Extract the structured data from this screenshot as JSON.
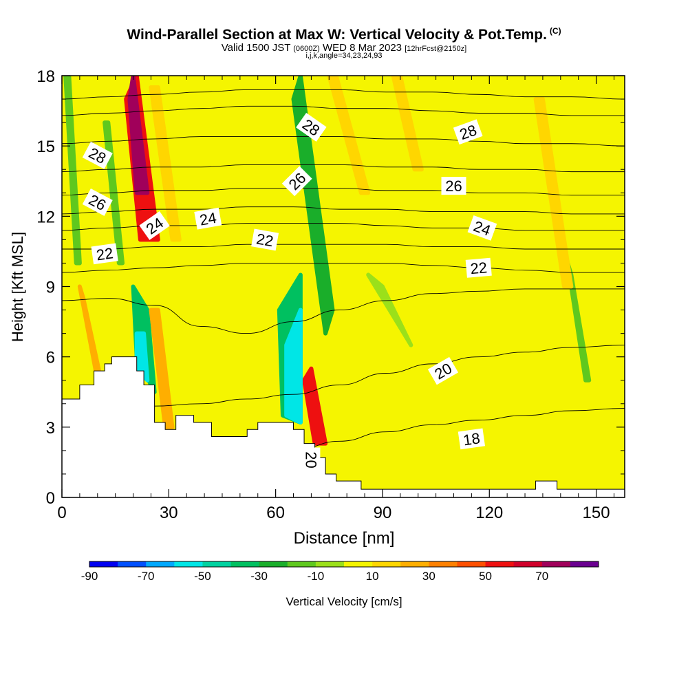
{
  "title": "Wind-Parallel Section at Max W: Vertical Velocity & Pot.Temp.",
  "title_mark": "(C)",
  "subtitle": {
    "valid": "Valid 1500 JST",
    "utc": "(0600Z)",
    "date": "WED 8 Mar 2023",
    "fcst": "[12hrFcst@2150z]"
  },
  "subinfo": "i,j,k,angle=34,23,24,93",
  "chart_data": {
    "type": "heatmap",
    "xlabel": "Distance [nm]",
    "ylabel": "Height [Kft MSL]",
    "xlim": [
      0,
      158
    ],
    "ylim": [
      0,
      18
    ],
    "x_ticks": [
      0,
      30,
      60,
      90,
      120,
      150
    ],
    "y_ticks": [
      0,
      3,
      6,
      9,
      12,
      15,
      18
    ],
    "colorbar": {
      "label": "Vertical Velocity [cm/s]",
      "bounds": [
        -90,
        -80,
        -70,
        -60,
        -50,
        -40,
        -30,
        -20,
        -10,
        0,
        10,
        20,
        30,
        40,
        50,
        60,
        70,
        80
      ],
      "tick_labels": [
        "-90",
        "-70",
        "-50",
        "-30",
        "-10",
        "10",
        "30",
        "50",
        "70"
      ],
      "colors": [
        "#0000f0",
        "#0050ff",
        "#00a8ff",
        "#00e6e6",
        "#00d2a0",
        "#00c060",
        "#1aae2a",
        "#5fc81e",
        "#9be01a",
        "#f5f500",
        "#ffd600",
        "#ffae00",
        "#ff8000",
        "#ff4f00",
        "#ee1010",
        "#d0002a",
        "#a0005a",
        "#6a0090"
      ]
    },
    "terrain": [
      [
        0,
        4.2
      ],
      [
        5,
        4.2
      ],
      [
        5,
        4.8
      ],
      [
        9,
        4.8
      ],
      [
        9,
        5.4
      ],
      [
        12,
        5.4
      ],
      [
        12,
        5.7
      ],
      [
        14,
        5.7
      ],
      [
        14,
        6.0
      ],
      [
        16,
        6.0
      ],
      [
        19,
        6.0
      ],
      [
        19,
        6.0
      ],
      [
        21,
        6.0
      ],
      [
        21,
        5.4
      ],
      [
        23,
        5.4
      ],
      [
        23,
        4.8
      ],
      [
        26,
        4.8
      ],
      [
        26,
        3.2
      ],
      [
        29,
        3.2
      ],
      [
        29,
        2.9
      ],
      [
        32,
        2.9
      ],
      [
        32,
        3.5
      ],
      [
        37,
        3.5
      ],
      [
        37,
        3.2
      ],
      [
        42,
        3.2
      ],
      [
        42,
        2.6
      ],
      [
        52,
        2.6
      ],
      [
        52,
        2.9
      ],
      [
        55,
        2.9
      ],
      [
        55,
        3.2
      ],
      [
        65,
        3.2
      ],
      [
        65,
        2.9
      ],
      [
        68,
        2.9
      ],
      [
        68,
        2.3
      ],
      [
        71,
        2.3
      ],
      [
        71,
        1.7
      ],
      [
        74,
        1.7
      ],
      [
        74,
        1.0
      ],
      [
        77,
        1.0
      ],
      [
        77,
        0.7
      ],
      [
        80,
        0.7
      ],
      [
        80,
        0.7
      ],
      [
        84,
        0.7
      ],
      [
        84,
        0.35
      ],
      [
        133,
        0.35
      ],
      [
        133,
        0.7
      ],
      [
        139,
        0.7
      ],
      [
        139,
        0.35
      ],
      [
        158,
        0.35
      ]
    ],
    "pot_temp_contours": [
      {
        "value": 18,
        "y": [
          1.5,
          1.5,
          1.6,
          1.7,
          1.8,
          2.0,
          2.4,
          2.8,
          3.1,
          3.3,
          3.5,
          3.7,
          3.8
        ]
      },
      {
        "value": 20,
        "y": [
          3.6,
          3.7,
          3.9,
          4.0,
          4.2,
          4.4,
          4.8,
          5.3,
          5.7,
          6.0,
          6.2,
          6.4,
          6.5
        ]
      },
      {
        "value": 21,
        "y": [
          8.4,
          8.5,
          8.2,
          7.3,
          7.0,
          7.5,
          8.0,
          8.4,
          8.7,
          8.8,
          8.9,
          8.9,
          8.9
        ]
      },
      {
        "value": 22,
        "y": [
          9.6,
          9.7,
          9.8,
          9.9,
          10.0,
          10.0,
          10.0,
          10.0,
          9.9,
          9.8,
          9.7,
          9.6,
          9.6
        ]
      },
      {
        "value": 23,
        "y": [
          10.6,
          10.6,
          10.7,
          10.7,
          10.8,
          10.8,
          10.8,
          10.8,
          10.7,
          10.7,
          10.6,
          10.6,
          10.6
        ]
      },
      {
        "value": 24,
        "y": [
          11.4,
          11.5,
          11.6,
          11.6,
          11.7,
          11.7,
          11.7,
          11.6,
          11.5,
          11.5,
          11.4,
          11.4,
          11.4
        ]
      },
      {
        "value": 25,
        "y": [
          12.1,
          12.2,
          12.3,
          12.3,
          12.4,
          12.4,
          12.3,
          12.3,
          12.2,
          12.2,
          12.2,
          12.1,
          12.1
        ]
      },
      {
        "value": 26,
        "y": [
          12.9,
          13.0,
          13.1,
          13.1,
          13.2,
          13.2,
          13.2,
          13.1,
          13.1,
          13.0,
          13.0,
          12.9,
          12.9
        ]
      },
      {
        "value": 27,
        "y": [
          13.9,
          14.0,
          14.1,
          14.1,
          14.2,
          14.2,
          14.2,
          14.1,
          14.1,
          14.0,
          14.0,
          13.9,
          13.9
        ]
      },
      {
        "value": 28,
        "y": [
          15.1,
          15.2,
          15.3,
          15.4,
          15.4,
          15.4,
          15.4,
          15.3,
          15.3,
          15.2,
          15.1,
          15.1,
          15.0
        ]
      },
      {
        "value": 29,
        "y": [
          16.3,
          16.4,
          16.5,
          16.6,
          16.7,
          16.7,
          16.6,
          16.6,
          16.5,
          16.4,
          16.4,
          16.3,
          16.3
        ]
      },
      {
        "value": 30,
        "y": [
          17.0,
          17.1,
          17.2,
          17.3,
          17.4,
          17.4,
          17.4,
          17.3,
          17.3,
          17.2,
          17.1,
          17.1,
          17.0
        ]
      }
    ],
    "contour_x": [
      0,
      13,
      26,
      39,
      52,
      65,
      78,
      91,
      104,
      117,
      130,
      143,
      158
    ],
    "contour_labels": [
      {
        "text": "28",
        "x": 10,
        "y": 14.6,
        "angle": 28
      },
      {
        "text": "26",
        "x": 10,
        "y": 12.6,
        "angle": 28
      },
      {
        "text": "22",
        "x": 12,
        "y": 10.4,
        "angle": -8
      },
      {
        "text": "24",
        "x": 26,
        "y": 11.6,
        "angle": -35
      },
      {
        "text": "24",
        "x": 41,
        "y": 11.9,
        "angle": -10
      },
      {
        "text": "22",
        "x": 57,
        "y": 11.0,
        "angle": 10
      },
      {
        "text": "26",
        "x": 66,
        "y": 13.5,
        "angle": -45
      },
      {
        "text": "28",
        "x": 70,
        "y": 15.8,
        "angle": 35
      },
      {
        "text": "28",
        "x": 114,
        "y": 15.6,
        "angle": -20
      },
      {
        "text": "26",
        "x": 110,
        "y": 13.3,
        "angle": 0
      },
      {
        "text": "24",
        "x": 118,
        "y": 11.5,
        "angle": 20
      },
      {
        "text": "22",
        "x": 117,
        "y": 9.8,
        "angle": -5
      },
      {
        "text": "20",
        "x": 107,
        "y": 5.4,
        "angle": -30
      },
      {
        "text": "18",
        "x": 115,
        "y": 2.5,
        "angle": -8
      },
      {
        "text": "20",
        "x": 70,
        "y": 1.6,
        "angle": 90
      }
    ],
    "w_features": [
      {
        "x": [
          21,
          27,
          22,
          18
        ],
        "y": [
          18,
          11,
          11,
          17
        ],
        "w": 55
      },
      {
        "x": [
          20,
          24,
          21,
          19
        ],
        "y": [
          18,
          13,
          13,
          17
        ],
        "w": 75
      },
      {
        "x": [
          70,
          74,
          71,
          68
        ],
        "y": [
          5.5,
          2.3,
          2.3,
          5.0
        ],
        "w": 55
      },
      {
        "x": [
          21,
          26,
          24,
          20
        ],
        "y": [
          6.0,
          4.5,
          8.0,
          9.0
        ],
        "w": -40
      },
      {
        "x": [
          21,
          24,
          23,
          21
        ],
        "y": [
          5.5,
          5.0,
          7.0,
          7.0
        ],
        "w": -60
      },
      {
        "x": [
          62,
          67,
          67,
          61
        ],
        "y": [
          3.5,
          3.2,
          9.5,
          8.0
        ],
        "w": -35
      },
      {
        "x": [
          63,
          67,
          67,
          63
        ],
        "y": [
          3.5,
          3.2,
          8.0,
          6.5
        ],
        "w": -55
      },
      {
        "x": [
          67,
          76,
          74,
          65
        ],
        "y": [
          18,
          8.0,
          7.0,
          17
        ],
        "w": -30
      },
      {
        "x": [
          2,
          5,
          4,
          1
        ],
        "y": [
          18,
          10.0,
          10.0,
          18
        ],
        "w": -20
      },
      {
        "x": [
          13,
          17,
          16,
          12
        ],
        "y": [
          16,
          10.0,
          10.0,
          16
        ],
        "w": -15
      },
      {
        "x": [
          143,
          148,
          147,
          142
        ],
        "y": [
          9.5,
          5.0,
          5.0,
          10.0
        ],
        "w": -15
      },
      {
        "x": [
          90,
          98,
          96,
          86
        ],
        "y": [
          9.0,
          6.5,
          7.0,
          9.5
        ],
        "w": -10
      },
      {
        "x": [
          27,
          33,
          31,
          25
        ],
        "y": [
          17.5,
          11.0,
          11.0,
          17.5
        ],
        "w": 15
      },
      {
        "x": [
          6,
          11,
          10,
          5
        ],
        "y": [
          8.5,
          5.0,
          5.0,
          9.0
        ],
        "w": 25
      },
      {
        "x": [
          27,
          31,
          29,
          25
        ],
        "y": [
          8.0,
          3.0,
          3.0,
          8.0
        ],
        "w": 25
      },
      {
        "x": [
          77,
          86,
          84,
          75
        ],
        "y": [
          18,
          13.0,
          13.0,
          18
        ],
        "w": 15
      },
      {
        "x": [
          135,
          143,
          141,
          133
        ],
        "y": [
          17,
          9.0,
          9.0,
          17
        ],
        "w": 15
      },
      {
        "x": [
          95,
          101,
          99,
          93
        ],
        "y": [
          18,
          14.0,
          14.0,
          18
        ],
        "w": 15
      }
    ],
    "w_background": 5
  }
}
